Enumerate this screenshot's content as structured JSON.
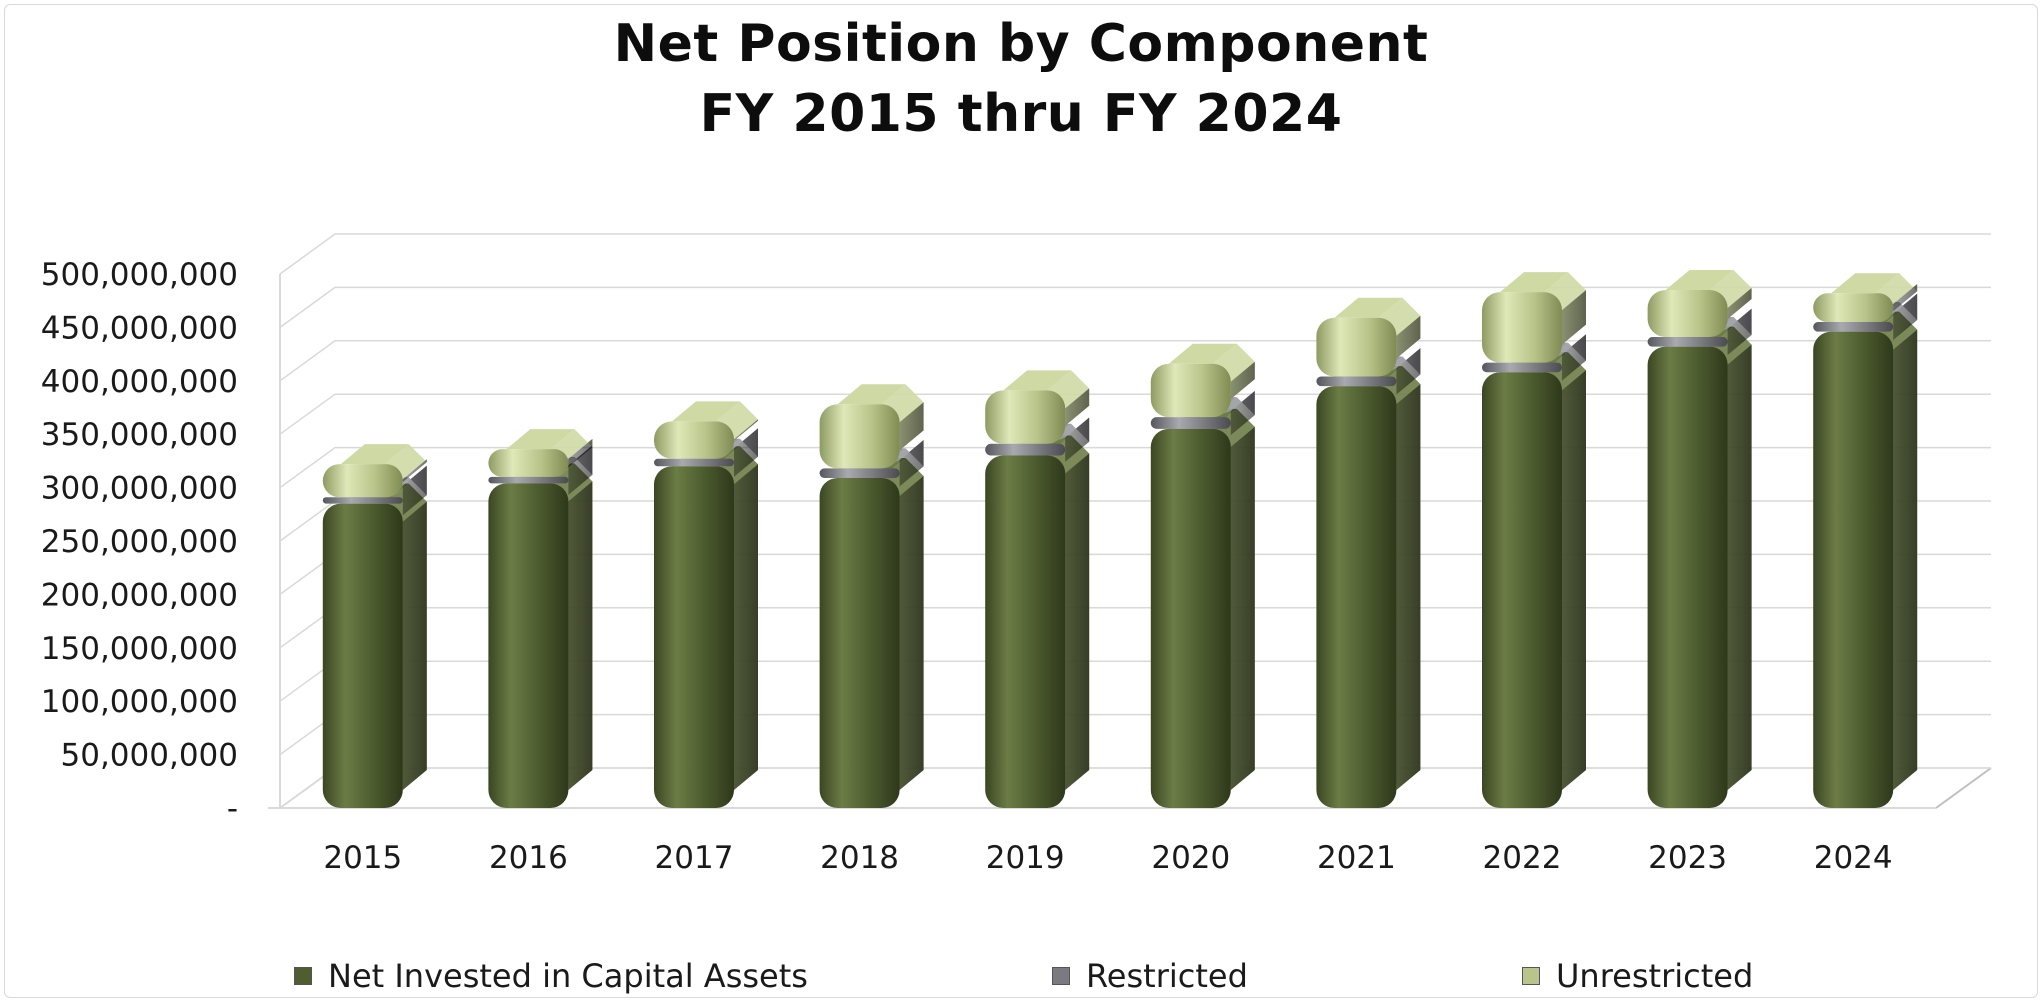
{
  "chart_data": {
    "type": "bar",
    "stacked": true,
    "title": "Net Position by Component",
    "subtitle": "FY 2015 thru FY 2024",
    "categories": [
      "2015",
      "2016",
      "2017",
      "2018",
      "2019",
      "2020",
      "2021",
      "2022",
      "2023",
      "2024"
    ],
    "series": [
      {
        "name": "Net Invested in Capital Assets",
        "color": "#4f5e30",
        "values": [
          285000000,
          304000000,
          320000000,
          309000000,
          330000000,
          355000000,
          395000000,
          408000000,
          432000000,
          446000000
        ]
      },
      {
        "name": "Restricted",
        "color": "#7a7a80",
        "values": [
          6000000,
          6000000,
          7000000,
          9000000,
          11000000,
          11000000,
          9000000,
          9000000,
          9000000,
          9000000
        ]
      },
      {
        "name": "Unrestricted",
        "color": "#b8c48a",
        "values": [
          31000000,
          26000000,
          35000000,
          60000000,
          50000000,
          50000000,
          55000000,
          66000000,
          44000000,
          27000000
        ]
      }
    ],
    "yticks": [
      "-",
      "50,000,000",
      "100,000,000",
      "150,000,000",
      "200,000,000",
      "250,000,000",
      "300,000,000",
      "350,000,000",
      "400,000,000",
      "450,000,000",
      "500,000,000"
    ],
    "ylim": [
      0,
      500000000
    ],
    "grid": true,
    "legend_position": "bottom"
  }
}
